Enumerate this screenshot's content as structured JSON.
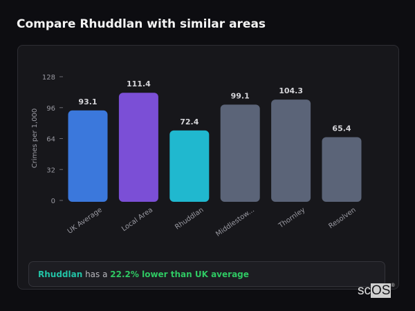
{
  "header": {
    "title": "Compare Rhuddlan with similar areas"
  },
  "chart_data": {
    "type": "bar",
    "categories": [
      "UK Average",
      "Local Area",
      "Rhuddlan",
      "Middlestow...",
      "Thornley",
      "Resolven"
    ],
    "values": [
      93.1,
      111.4,
      72.4,
      99.1,
      104.3,
      65.4
    ],
    "value_labels": [
      "93.1",
      "111.4",
      "72.4",
      "99.1",
      "104.3",
      "65.4"
    ],
    "colors": [
      "#3b78dc",
      "#7b4fd6",
      "#20b8cf",
      "#5b6478",
      "#5b6478",
      "#5b6478"
    ],
    "ylabel": "Crimes per 1,000",
    "ylim": [
      0,
      128
    ],
    "yticks": [
      "0",
      "32",
      "64",
      "96",
      "128"
    ]
  },
  "summary": {
    "area": "Rhuddlan",
    "mid": " has a ",
    "highlight": "22.2% lower than UK average"
  },
  "logo": {
    "text_a": "sc",
    "text_b": "OS",
    "mark": "®"
  }
}
